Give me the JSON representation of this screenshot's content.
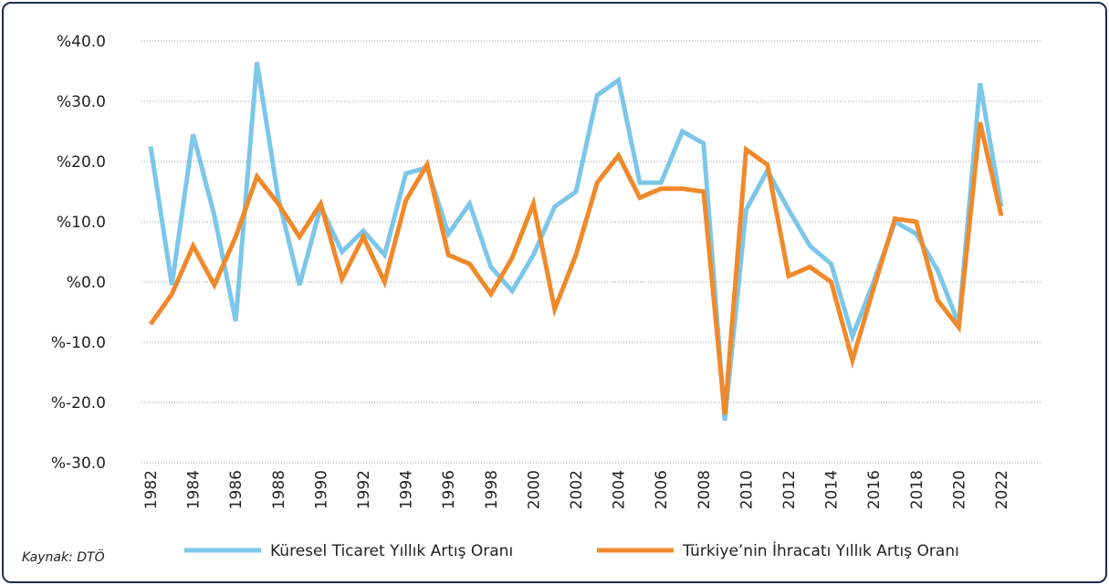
{
  "chart_data": {
    "type": "line",
    "source": "Kaynak: DTÖ",
    "x": [
      1982,
      1983,
      1984,
      1985,
      1986,
      1987,
      1988,
      1989,
      1990,
      1991,
      1992,
      1993,
      1994,
      1995,
      1996,
      1997,
      1998,
      1999,
      2000,
      2001,
      2002,
      2003,
      2004,
      2005,
      2006,
      2007,
      2008,
      2009,
      2010,
      2011,
      2012,
      2013,
      2014,
      2015,
      2016,
      2017,
      2018,
      2019,
      2020,
      2021,
      2022
    ],
    "series": [
      {
        "name": "Küresel Ticaret Yıllık Artış Oranı",
        "color": "#7cc6ea",
        "values": [
          22.5,
          -0.5,
          24.5,
          11,
          -6.5,
          36.5,
          14,
          -0.5,
          12.5,
          5,
          8.5,
          4.5,
          18,
          19,
          8,
          13,
          2.5,
          -1.5,
          4.5,
          12.5,
          15,
          31,
          33.5,
          16.5,
          16.5,
          25,
          23,
          -23,
          12,
          18.5,
          12,
          6,
          3,
          -9,
          0,
          10,
          8,
          2,
          -7,
          33,
          12.5
        ]
      },
      {
        "name": "Türkiye’nin İhracatı Yıllık Artış Oranı",
        "color": "#f0892a",
        "values": [
          -7,
          -2,
          6,
          -0.5,
          7.5,
          17.5,
          13,
          7.5,
          13,
          0.5,
          7.5,
          0,
          13.5,
          19.5,
          4.5,
          3,
          -2,
          4,
          13,
          -4.5,
          4.5,
          16.5,
          21,
          14,
          15.5,
          15.5,
          15,
          -22,
          22,
          19.5,
          1,
          2.5,
          0,
          -13,
          -1,
          10.5,
          10,
          -3,
          -7.5,
          26.5,
          11
        ]
      }
    ],
    "xlim": [
      1982,
      2022
    ],
    "xticks": [
      1982,
      1984,
      1986,
      1988,
      1990,
      1992,
      1994,
      1996,
      1998,
      2000,
      2002,
      2004,
      2006,
      2008,
      2010,
      2012,
      2014,
      2016,
      2018,
      2020,
      2022
    ],
    "ylim": [
      -30,
      40
    ],
    "yticks": [
      {
        "value": -30,
        "label": "%-30.0"
      },
      {
        "value": -20,
        "label": "%-20.0"
      },
      {
        "value": -10,
        "label": "%-10.0"
      },
      {
        "value": 0,
        "label": "%0.0"
      },
      {
        "value": 10,
        "label": "%10.0"
      },
      {
        "value": 20,
        "label": "%20.0"
      },
      {
        "value": 30,
        "label": "%30.0"
      },
      {
        "value": 40,
        "label": "%40.0"
      }
    ],
    "grid": true,
    "legend": "bottom"
  }
}
